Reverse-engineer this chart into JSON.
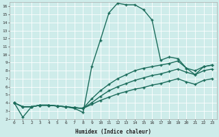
{
  "xlabel": "Humidex (Indice chaleur)",
  "bg_color": "#ceecea",
  "line_color": "#1a6b5a",
  "grid_color": "#ffffff",
  "xlim": [
    -0.5,
    23.5
  ],
  "ylim": [
    2,
    16.5
  ],
  "xticks": [
    0,
    1,
    2,
    3,
    4,
    5,
    6,
    7,
    8,
    9,
    10,
    11,
    12,
    13,
    14,
    15,
    16,
    17,
    18,
    19,
    20,
    21,
    22,
    23
  ],
  "yticks": [
    2,
    3,
    4,
    5,
    6,
    7,
    8,
    9,
    10,
    11,
    12,
    13,
    14,
    15,
    16
  ],
  "series": [
    [
      4.0,
      2.2,
      3.5,
      3.7,
      3.7,
      3.6,
      3.5,
      3.3,
      2.8,
      8.5,
      11.8,
      15.2,
      16.4,
      16.2,
      16.2,
      15.6,
      14.3,
      9.3,
      9.7,
      9.5,
      8.3,
      7.5,
      8.5,
      8.7
    ],
    [
      4.0,
      3.5,
      3.5,
      3.7,
      3.7,
      3.6,
      3.5,
      3.4,
      3.3,
      4.5,
      5.5,
      6.3,
      7.0,
      7.5,
      8.0,
      8.3,
      8.5,
      8.7,
      8.9,
      9.2,
      8.3,
      8.0,
      8.5,
      8.7
    ],
    [
      4.0,
      3.5,
      3.5,
      3.7,
      3.7,
      3.6,
      3.5,
      3.4,
      3.3,
      4.0,
      4.8,
      5.5,
      6.0,
      6.4,
      6.8,
      7.1,
      7.4,
      7.6,
      7.9,
      8.2,
      7.8,
      7.5,
      8.0,
      8.2
    ],
    [
      4.0,
      3.5,
      3.5,
      3.7,
      3.7,
      3.6,
      3.5,
      3.4,
      3.3,
      3.8,
      4.3,
      4.7,
      5.1,
      5.4,
      5.7,
      5.9,
      6.2,
      6.4,
      6.7,
      7.0,
      6.6,
      6.3,
      6.8,
      7.0
    ]
  ]
}
